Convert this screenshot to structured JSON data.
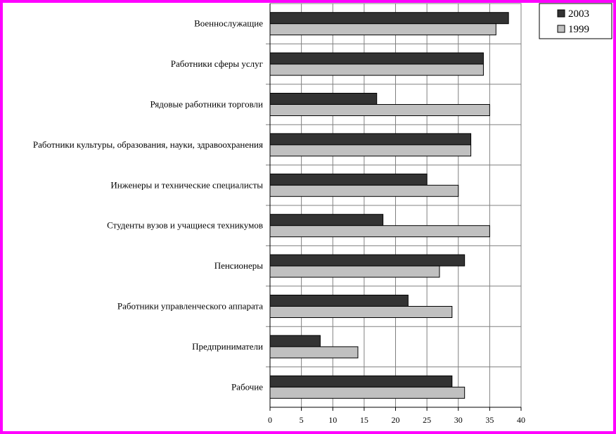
{
  "chart_data": {
    "type": "bar",
    "orientation": "horizontal",
    "categories": [
      "Военнослужащие",
      "Работники сферы услуг",
      "Рядовые работники торговли",
      "Работники культуры, образования, науки, здравоохранения",
      "Инженеры и технические специалисты",
      "Студенты вузов и учащиеся техникумов",
      "Пенсионеры",
      "Работники управленческого аппарата",
      "Предприниматели",
      "Рабочие"
    ],
    "series": [
      {
        "name": "2003",
        "color": "#333333",
        "values": [
          38,
          34,
          17,
          32,
          25,
          18,
          31,
          22,
          8,
          29
        ]
      },
      {
        "name": "1999",
        "color": "#c0c0c0",
        "values": [
          36,
          34,
          35,
          32,
          30,
          35,
          27,
          29,
          14,
          31
        ]
      }
    ],
    "xlim": [
      0,
      40
    ],
    "xticks": [
      0,
      5,
      10,
      15,
      20,
      25,
      30,
      35,
      40
    ],
    "grid": true,
    "legend_position": "top-right",
    "frame_color": "#ff00ff"
  }
}
